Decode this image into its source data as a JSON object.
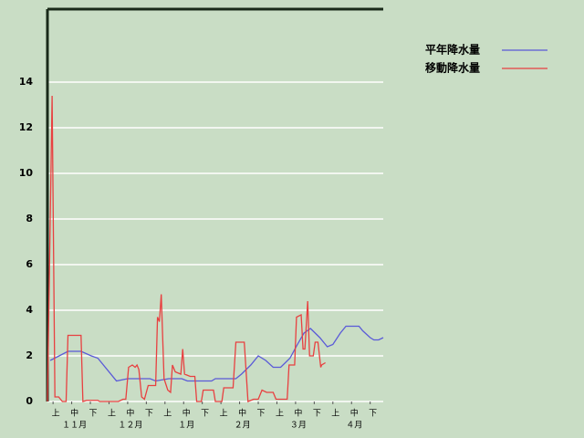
{
  "chart_data": {
    "type": "line",
    "xlim": [
      0,
      180
    ],
    "ylim": [
      0,
      17.2
    ],
    "yticks": [
      0,
      2,
      4,
      6,
      8,
      10,
      12,
      14
    ],
    "xticks": [
      {
        "value": 3,
        "label": "上"
      },
      {
        "value": 13,
        "label": "中"
      },
      {
        "value": 23,
        "label": "下"
      },
      {
        "value": 33,
        "label": "上"
      },
      {
        "value": 43,
        "label": "中"
      },
      {
        "value": 53,
        "label": "下"
      },
      {
        "value": 63,
        "label": "上"
      },
      {
        "value": 73,
        "label": "中"
      },
      {
        "value": 83,
        "label": "下"
      },
      {
        "value": 93,
        "label": "上"
      },
      {
        "value": 103,
        "label": "中"
      },
      {
        "value": 113,
        "label": "下"
      },
      {
        "value": 123,
        "label": "上"
      },
      {
        "value": 133,
        "label": "中"
      },
      {
        "value": 143,
        "label": "下"
      },
      {
        "value": 153,
        "label": "上"
      },
      {
        "value": 163,
        "label": "中"
      },
      {
        "value": 173,
        "label": "下"
      }
    ],
    "month_ticks": [
      {
        "value": 13,
        "label": "１１月"
      },
      {
        "value": 43,
        "label": "１２月"
      },
      {
        "value": 73,
        "label": "１月"
      },
      {
        "value": 103,
        "label": "２月"
      },
      {
        "value": 133,
        "label": "３月"
      },
      {
        "value": 163,
        "label": "４月"
      }
    ],
    "grid": true,
    "legend": "upper right",
    "series": [
      {
        "name": "平年降水量",
        "color": "#5a5ad8",
        "x": [
          1.5,
          11,
          18,
          23.5,
          27,
          37,
          43,
          55,
          58,
          65,
          72,
          75,
          88,
          90,
          101,
          104,
          109,
          113,
          117,
          121,
          125,
          130,
          134,
          137.5,
          141,
          146,
          150,
          153,
          157,
          160,
          167,
          169,
          173,
          175,
          177.5,
          180
        ],
        "values": [
          1.8,
          2.2,
          2.2,
          2.0,
          1.9,
          0.9,
          1.0,
          1.0,
          0.9,
          1.0,
          1.0,
          0.9,
          0.9,
          1.0,
          1.0,
          1.2,
          1.6,
          2.0,
          1.8,
          1.5,
          1.5,
          1.9,
          2.5,
          3.0,
          3.2,
          2.8,
          2.4,
          2.5,
          3.0,
          3.3,
          3.3,
          3.1,
          2.8,
          2.7,
          2.7,
          2.8
        ]
      },
      {
        "name": "移動降水量",
        "color": "#e84040",
        "x": [
          0,
          2.5,
          4,
          6,
          8,
          10,
          11,
          18,
          19,
          21,
          27,
          28,
          38,
          40.5,
          42,
          43.5,
          45.5,
          47,
          48,
          49,
          50.5,
          52,
          54,
          55,
          58,
          59,
          60,
          61,
          62.5,
          64.5,
          66,
          67,
          68.5,
          71.5,
          72.5,
          73.5,
          76.5,
          79,
          80,
          82.5,
          83.5,
          89,
          90,
          93.5,
          94.5,
          99.5,
          101,
          105.5,
          107.5,
          110.5,
          113,
          115,
          117.5,
          121,
          122.5,
          128.5,
          129.5,
          132.5,
          133.5,
          136,
          137,
          138,
          139.5,
          140.5,
          142.5,
          143.5,
          145,
          146.5,
          147,
          149
        ],
        "values": [
          0,
          13.4,
          0.2,
          0.2,
          0,
          0,
          2.9,
          2.9,
          0,
          0.05,
          0.05,
          0,
          0,
          0.1,
          0.1,
          1.5,
          1.6,
          1.5,
          1.6,
          1.4,
          0.2,
          0.1,
          0.7,
          0.7,
          0.7,
          3.7,
          3.5,
          4.7,
          1.0,
          0.5,
          0.4,
          1.6,
          1.3,
          1.2,
          2.3,
          1.2,
          1.1,
          1.1,
          0,
          0,
          0.5,
          0.5,
          0,
          0,
          0.6,
          0.6,
          2.6,
          2.6,
          0,
          0.1,
          0.1,
          0.5,
          0.4,
          0.4,
          0.1,
          0.1,
          1.6,
          1.6,
          3.7,
          3.8,
          2.3,
          2.3,
          4.4,
          2.0,
          2.0,
          2.6,
          2.6,
          1.5,
          1.6,
          1.7
        ]
      }
    ]
  }
}
